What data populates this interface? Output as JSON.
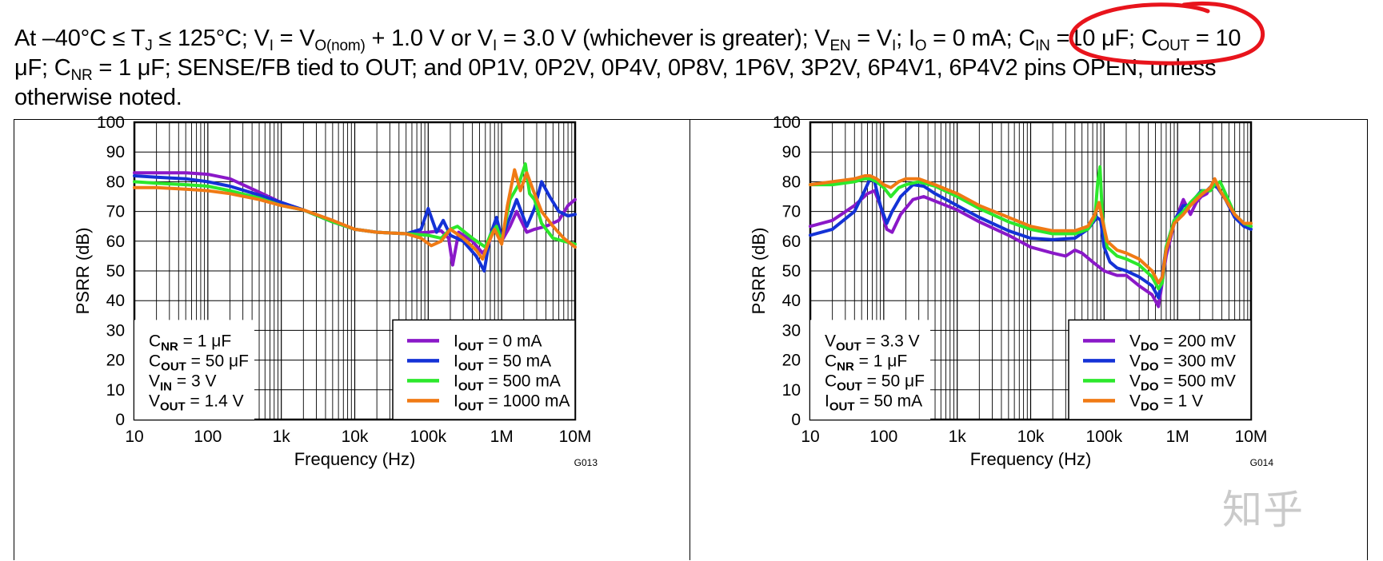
{
  "header": {
    "line1_parts": [
      "At –40°C ≤ T",
      "J",
      " ≤ 125°C; V",
      "I",
      " = V",
      "O(nom)",
      " + 1.0 V or V",
      "I",
      " = 3.0 V (whichever is greater); V",
      "EN",
      " = V",
      "I",
      "; I",
      "O",
      " = 0 mA; C",
      "IN",
      " =10 μF; C",
      "OUT",
      " = 10"
    ],
    "line2_parts": [
      "μF; C",
      "NR",
      " = 1 μF; SENSE/FB tied to OUT; and 0P1V, 0P2V, 0P4V, 0P8V, 1P6V, 3P2V, 6P4V1, 6P4V2 pins OPEN, unless"
    ],
    "line3": "otherwise noted.",
    "annotation_color": "#e8141c"
  },
  "watermark": "知乎 ",
  "chart_data": [
    {
      "type": "line",
      "x_scale": "log",
      "xlabel": "Frequency (Hz)",
      "ylabel": "PSRR (dB)",
      "xlim": [
        10,
        10000000
      ],
      "ylim": [
        0,
        100
      ],
      "grid": true,
      "x_tick_labels": [
        "10",
        "100",
        "1k",
        "10k",
        "100k",
        "1M",
        "10M"
      ],
      "y_tick_labels": [
        "0",
        "10",
        "20",
        "30",
        "40",
        "50",
        "60",
        "70",
        "80",
        "90",
        "100"
      ],
      "figure_code": "G013",
      "conditions": [
        {
          "pre": "C",
          "sub": "NR",
          "post": " = 1 μF"
        },
        {
          "pre": "C",
          "sub": "OUT",
          "post": " = 50 μF"
        },
        {
          "pre": "V",
          "sub": "IN",
          "post": " = 3 V"
        },
        {
          "pre": "V",
          "sub": "OUT",
          "post": " = 1.4 V"
        }
      ],
      "legend_position": "lower-right",
      "series": [
        {
          "legend_pre": "I",
          "legend_sub": "OUT",
          "legend_post": " = 0 mA",
          "color": "#8a18c8",
          "x": [
            10,
            20,
            50,
            100,
            200,
            500,
            1000,
            2000,
            5000,
            10000,
            20000,
            50000,
            100000,
            150000,
            190000,
            215000,
            260000,
            400000,
            550000,
            650000,
            800000,
            1000000,
            1300000,
            1600000,
            2200000,
            2800000,
            4000000,
            6000000,
            8000000,
            10000000
          ],
          "y": [
            83,
            83,
            83,
            82.5,
            81,
            76.5,
            73,
            70.5,
            66.5,
            64,
            63,
            62.5,
            63,
            63.5,
            61,
            52,
            63,
            60,
            56,
            58,
            66,
            60,
            65,
            70,
            63,
            64,
            65,
            67,
            72,
            74
          ]
        },
        {
          "legend_pre": "I",
          "legend_sub": "OUT",
          "legend_post": " = 50 mA",
          "color": "#1432d6",
          "x": [
            10,
            20,
            50,
            100,
            200,
            500,
            1000,
            2000,
            5000,
            10000,
            20000,
            50000,
            80000,
            100000,
            130000,
            160000,
            200000,
            300000,
            450000,
            580000,
            700000,
            850000,
            1000000,
            1300000,
            1600000,
            2200000,
            2800000,
            3500000,
            4500000,
            6000000,
            8000000,
            10000000
          ],
          "y": [
            82,
            81.5,
            81,
            80,
            78.5,
            75.5,
            73,
            70.5,
            66.5,
            64,
            63,
            62.5,
            64,
            71,
            63,
            67,
            62,
            60,
            55,
            50,
            62,
            68,
            61,
            68,
            74,
            65,
            71,
            80,
            75,
            70,
            68.5,
            69
          ]
        },
        {
          "legend_pre": "I",
          "legend_sub": "OUT",
          "legend_post": " = 500 mA",
          "color": "#2ce82c",
          "x": [
            10,
            20,
            50,
            100,
            200,
            500,
            1000,
            2000,
            5000,
            10000,
            20000,
            50000,
            100000,
            150000,
            200000,
            250000,
            400000,
            600000,
            700000,
            850000,
            1000000,
            1300000,
            1700000,
            2100000,
            2400000,
            2800000,
            3500000,
            5000000,
            7000000,
            10000000
          ],
          "y": [
            80,
            79.5,
            79,
            78.5,
            77,
            74.5,
            72,
            70.5,
            66.5,
            64,
            63,
            62.5,
            62,
            61,
            64,
            65,
            61,
            58,
            62,
            65,
            60,
            74,
            79,
            86,
            76,
            74,
            66,
            61,
            60,
            59
          ]
        },
        {
          "legend_pre": "I",
          "legend_sub": "OUT",
          "legend_post": " = 1000 mA",
          "color": "#f07a14",
          "x": [
            10,
            20,
            50,
            100,
            200,
            500,
            1000,
            2000,
            5000,
            10000,
            20000,
            50000,
            80000,
            110000,
            150000,
            200000,
            300000,
            450000,
            550000,
            650000,
            800000,
            1000000,
            1200000,
            1500000,
            1800000,
            2200000,
            2800000,
            3500000,
            5000000,
            7000000,
            10000000
          ],
          "y": [
            78,
            78,
            77.5,
            77,
            76,
            74,
            72,
            70.5,
            67,
            64,
            63,
            62.5,
            61,
            58.5,
            60,
            64,
            61,
            57,
            54,
            59,
            64,
            59,
            72,
            84,
            77,
            83,
            76,
            70,
            65,
            61,
            58
          ]
        }
      ]
    },
    {
      "type": "line",
      "x_scale": "log",
      "xlabel": "Frequency (Hz)",
      "ylabel": "PSRR (dB)",
      "xlim": [
        10,
        10000000
      ],
      "ylim": [
        0,
        100
      ],
      "grid": true,
      "x_tick_labels": [
        "10",
        "100",
        "1k",
        "10k",
        "100k",
        "1M",
        "10M"
      ],
      "y_tick_labels": [
        "0",
        "10",
        "20",
        "30",
        "40",
        "50",
        "60",
        "70",
        "80",
        "90",
        "100"
      ],
      "figure_code": "G014",
      "conditions": [
        {
          "pre": "V",
          "sub": "OUT",
          "post": " = 3.3 V"
        },
        {
          "pre": "C",
          "sub": "NR",
          "post": " = 1 μF"
        },
        {
          "pre": "C",
          "sub": "OUT",
          "post": " = 50 μF"
        },
        {
          "pre": "I",
          "sub": "OUT",
          "post": " = 50 mA"
        }
      ],
      "legend_position": "lower-right",
      "series": [
        {
          "legend_pre": "V",
          "legend_sub": "DO",
          "legend_post": " = 200 mV",
          "color": "#8a18c8",
          "x": [
            10,
            20,
            40,
            60,
            75,
            90,
            110,
            130,
            170,
            250,
            350,
            500,
            1000,
            2000,
            5000,
            10000,
            20000,
            30000,
            40000,
            50000,
            70000,
            100000,
            150000,
            200000,
            300000,
            450000,
            550000,
            600000,
            700000,
            900000,
            1200000,
            1500000,
            1800000,
            2100000,
            2500000,
            3000000,
            3500000,
            4500000,
            6000000,
            8000000,
            10000000
          ],
          "y": [
            65,
            67,
            72,
            76,
            77,
            72,
            64,
            63,
            69,
            74,
            75,
            73.5,
            70.5,
            66.5,
            62,
            58,
            56,
            55,
            57,
            56,
            53,
            50,
            48.5,
            48.5,
            45,
            42,
            38,
            44,
            55,
            66,
            74,
            69,
            73,
            75,
            76,
            79,
            78,
            74,
            68,
            66,
            65
          ]
        },
        {
          "legend_pre": "V",
          "legend_sub": "DO",
          "legend_post": " = 300 mV",
          "color": "#1432d6",
          "x": [
            10,
            20,
            40,
            55,
            65,
            75,
            90,
            110,
            130,
            170,
            250,
            350,
            500,
            1000,
            2000,
            5000,
            10000,
            20000,
            40000,
            60000,
            80000,
            90000,
            100000,
            120000,
            150000,
            200000,
            300000,
            450000,
            550000,
            600000,
            700000,
            900000,
            1200000,
            1500000,
            1800000,
            2100000,
            2500000,
            3000000,
            3500000,
            4500000,
            6000000,
            8000000,
            10000000
          ],
          "y": [
            62,
            64,
            70,
            77,
            81,
            80,
            72,
            66,
            70,
            75,
            79,
            78.5,
            76,
            72,
            68,
            63.5,
            61,
            60.5,
            61,
            64,
            68,
            67,
            58,
            53,
            51,
            50,
            48,
            45,
            41,
            46,
            58,
            67,
            72,
            72,
            75,
            77,
            77,
            79,
            78,
            74,
            68,
            65,
            64
          ]
        },
        {
          "legend_pre": "V",
          "legend_sub": "DO",
          "legend_post": " = 500 mV",
          "color": "#2ce82c",
          "x": [
            10,
            20,
            40,
            55,
            65,
            80,
            100,
            125,
            160,
            200,
            300,
            500,
            1000,
            2000,
            5000,
            10000,
            20000,
            40000,
            60000,
            75000,
            82000,
            88000,
            95000,
            110000,
            150000,
            200000,
            300000,
            450000,
            550000,
            620000,
            700000,
            900000,
            1200000,
            1500000,
            1800000,
            2200000,
            2800000,
            3200000,
            3800000,
            4500000,
            6000000,
            8000000,
            10000000
          ],
          "y": [
            79,
            79,
            80,
            81,
            81,
            80,
            78,
            75,
            78,
            79,
            80,
            78.5,
            75,
            71,
            66.5,
            64,
            62.5,
            62.5,
            64,
            68,
            80,
            85,
            68,
            58,
            55,
            54,
            52,
            48,
            44,
            46,
            58,
            67,
            70,
            73,
            75,
            77,
            77,
            79,
            80,
            76,
            69,
            66,
            65
          ]
        },
        {
          "legend_pre": "V",
          "legend_sub": "DO",
          "legend_post": " = 1 V",
          "color": "#f07a14",
          "x": [
            10,
            20,
            40,
            55,
            65,
            80,
            100,
            125,
            160,
            200,
            300,
            500,
            1000,
            2000,
            5000,
            10000,
            20000,
            40000,
            60000,
            75000,
            85000,
            95000,
            110000,
            150000,
            200000,
            300000,
            450000,
            550000,
            620000,
            700000,
            900000,
            1200000,
            1500000,
            1800000,
            2200000,
            2800000,
            3200000,
            3800000,
            4500000,
            6000000,
            8000000,
            10000000
          ],
          "y": [
            79,
            80,
            81,
            82,
            82,
            81,
            79,
            78,
            80,
            81,
            81,
            79,
            76,
            72,
            68,
            65,
            63.5,
            63.5,
            65,
            69,
            73,
            67,
            60,
            57,
            56,
            54,
            50,
            46,
            48,
            57,
            66,
            69,
            72,
            74,
            76,
            78,
            81,
            77,
            74,
            69,
            66,
            66
          ]
        }
      ]
    }
  ]
}
